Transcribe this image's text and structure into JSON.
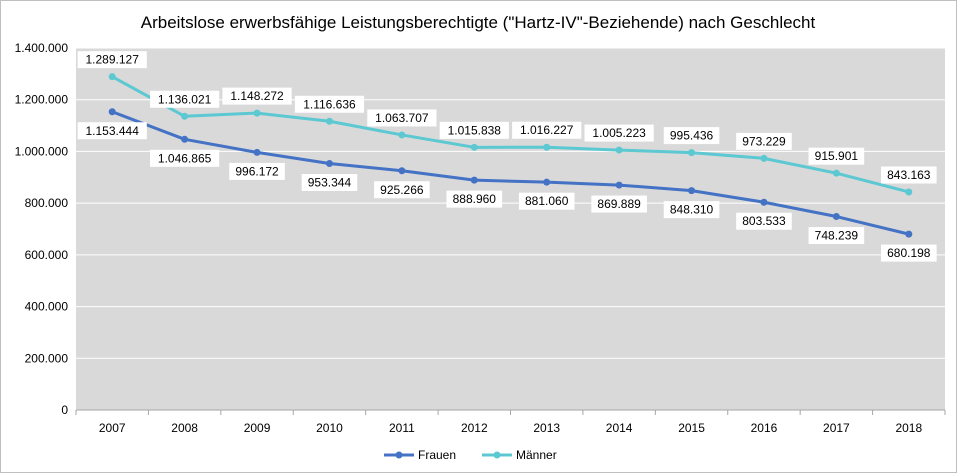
{
  "chart_data": {
    "type": "line",
    "title": "Arbeitslose erwerbsfähige Leistungsberechtigte (\"Hartz-IV\"-Beziehende) nach Geschlecht",
    "categories": [
      "2007",
      "2008",
      "2009",
      "2010",
      "2011",
      "2012",
      "2013",
      "2014",
      "2015",
      "2016",
      "2017",
      "2018"
    ],
    "ylim": [
      0,
      1400000
    ],
    "y_ticks": [
      0,
      200000,
      400000,
      600000,
      800000,
      1000000,
      1200000,
      1400000
    ],
    "y_tick_labels": [
      "0",
      "200.000",
      "400.000",
      "600.000",
      "800.000",
      "1.000.000",
      "1.200.000",
      "1.400.000"
    ],
    "grid": true,
    "legend_position": "bottom",
    "series": [
      {
        "name": "Frauen",
        "color": "#4472C4",
        "values": [
          1153444,
          1046865,
          996172,
          953344,
          925266,
          888960,
          881060,
          869889,
          848310,
          803533,
          748239,
          680198
        ],
        "labels": [
          "1.153.444",
          "1.046.865",
          "996.172",
          "953.344",
          "925.266",
          "888.960",
          "881.060",
          "869.889",
          "848.310",
          "803.533",
          "748.239",
          "680.198"
        ]
      },
      {
        "name": "Männer",
        "color": "#5BC8D2",
        "values": [
          1289127,
          1136021,
          1148272,
          1116636,
          1063707,
          1015838,
          1016227,
          1005223,
          995436,
          973229,
          915901,
          843163
        ],
        "labels": [
          "1.289.127",
          "1.136.021",
          "1.148.272",
          "1.116.636",
          "1.063.707",
          "1.015.838",
          "1.016.227",
          "1.005.223",
          "995.436",
          "973.229",
          "915.901",
          "843.163"
        ]
      }
    ]
  }
}
